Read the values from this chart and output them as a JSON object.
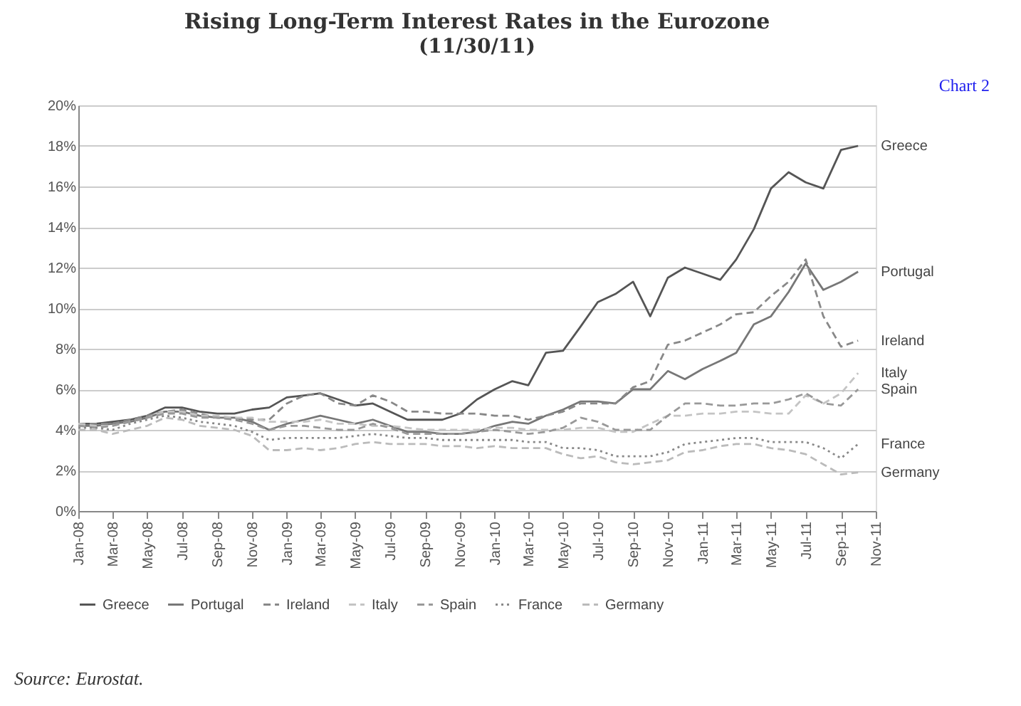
{
  "chart_data": {
    "type": "line",
    "title": "Rising Long-Term Interest Rates in the Eurozone",
    "subtitle": "(11/30/11)",
    "annotations": [
      "Chart 2",
      "Source: Eurostat."
    ],
    "x": [
      "2008-01",
      "2008-02",
      "2008-03",
      "2008-04",
      "2008-05",
      "2008-06",
      "2008-07",
      "2008-08",
      "2008-09",
      "2008-10",
      "2008-11",
      "2008-12",
      "2009-01",
      "2009-02",
      "2009-03",
      "2009-04",
      "2009-05",
      "2009-06",
      "2009-07",
      "2009-08",
      "2009-09",
      "2009-10",
      "2009-11",
      "2009-12",
      "2010-01",
      "2010-02",
      "2010-03",
      "2010-04",
      "2010-05",
      "2010-06",
      "2010-07",
      "2010-08",
      "2010-09",
      "2010-10",
      "2010-11",
      "2010-12",
      "2011-01",
      "2011-02",
      "2011-03",
      "2011-04",
      "2011-05",
      "2011-06",
      "2011-07",
      "2011-08",
      "2011-09",
      "2011-10"
    ],
    "series": [
      {
        "name": "Greece",
        "color": "#555555",
        "line_style": "solid",
        "values": [
          4.3,
          4.3,
          4.4,
          4.5,
          4.7,
          5.1,
          5.1,
          4.9,
          4.8,
          4.8,
          5.0,
          5.1,
          5.6,
          5.7,
          5.8,
          5.5,
          5.2,
          5.3,
          4.9,
          4.5,
          4.5,
          4.5,
          4.8,
          5.5,
          6.0,
          6.4,
          6.2,
          7.8,
          7.9,
          9.1,
          10.3,
          10.7,
          11.3,
          9.6,
          11.5,
          12.0,
          11.7,
          11.4,
          12.4,
          13.9,
          15.9,
          16.7,
          16.2,
          15.9,
          17.8,
          18.0
        ]
      },
      {
        "name": "Portugal",
        "color": "#777777",
        "line_style": "solid",
        "values": [
          4.2,
          4.2,
          4.3,
          4.4,
          4.6,
          4.9,
          4.9,
          4.7,
          4.6,
          4.6,
          4.4,
          4.0,
          4.3,
          4.5,
          4.7,
          4.5,
          4.3,
          4.5,
          4.2,
          3.9,
          3.9,
          3.8,
          3.8,
          3.9,
          4.2,
          4.4,
          4.3,
          4.7,
          5.0,
          5.4,
          5.4,
          5.3,
          6.0,
          6.0,
          6.9,
          6.5,
          7.0,
          7.4,
          7.8,
          9.2,
          9.6,
          10.8,
          12.2,
          10.9,
          11.3,
          11.8
        ]
      },
      {
        "name": "Ireland",
        "color": "#888888",
        "line_style": "dashed",
        "values": [
          4.3,
          4.3,
          4.3,
          4.5,
          4.7,
          4.9,
          5.0,
          4.8,
          4.6,
          4.6,
          4.5,
          4.5,
          5.3,
          5.7,
          5.8,
          5.3,
          5.2,
          5.7,
          5.4,
          4.9,
          4.9,
          4.8,
          4.8,
          4.8,
          4.7,
          4.7,
          4.5,
          4.7,
          4.9,
          5.3,
          5.3,
          5.3,
          6.1,
          6.4,
          8.2,
          8.4,
          8.8,
          9.2,
          9.7,
          9.8,
          10.6,
          11.3,
          12.4,
          9.6,
          8.1,
          8.4
        ]
      },
      {
        "name": "Italy",
        "color": "#c4c4c4",
        "line_style": "dashed",
        "values": [
          4.3,
          4.2,
          4.2,
          4.4,
          4.6,
          4.9,
          4.9,
          4.7,
          4.7,
          4.6,
          4.6,
          4.4,
          4.4,
          4.4,
          4.5,
          4.3,
          4.3,
          4.2,
          4.2,
          4.1,
          4.0,
          4.0,
          4.0,
          4.0,
          4.1,
          4.1,
          4.0,
          4.0,
          4.0,
          4.1,
          4.1,
          3.9,
          3.9,
          4.3,
          4.7,
          4.7,
          4.8,
          4.8,
          4.9,
          4.9,
          4.8,
          4.8,
          5.7,
          5.3,
          5.8,
          6.8
        ]
      },
      {
        "name": "Spain",
        "color": "#999999",
        "line_style": "dashed",
        "values": [
          4.2,
          4.1,
          4.2,
          4.4,
          4.6,
          4.8,
          4.8,
          4.6,
          4.6,
          4.5,
          4.3,
          4.0,
          4.2,
          4.2,
          4.1,
          4.0,
          4.0,
          4.3,
          4.1,
          3.8,
          3.8,
          3.8,
          3.8,
          3.9,
          4.0,
          3.9,
          3.8,
          3.9,
          4.1,
          4.6,
          4.4,
          4.0,
          4.0,
          4.0,
          4.7,
          5.3,
          5.3,
          5.2,
          5.2,
          5.3,
          5.3,
          5.5,
          5.8,
          5.3,
          5.2,
          6.0
        ]
      },
      {
        "name": "France",
        "color": "#888888",
        "line_style": "dotted",
        "values": [
          4.1,
          4.1,
          4.0,
          4.3,
          4.5,
          4.7,
          4.6,
          4.4,
          4.3,
          4.2,
          3.9,
          3.5,
          3.6,
          3.6,
          3.6,
          3.6,
          3.7,
          3.8,
          3.7,
          3.6,
          3.6,
          3.5,
          3.5,
          3.5,
          3.5,
          3.5,
          3.4,
          3.4,
          3.1,
          3.1,
          3.0,
          2.7,
          2.7,
          2.7,
          2.9,
          3.3,
          3.4,
          3.5,
          3.6,
          3.6,
          3.4,
          3.4,
          3.4,
          3.1,
          2.6,
          3.3
        ]
      },
      {
        "name": "Germany",
        "color": "#bbbbbb",
        "line_style": "dashed",
        "values": [
          4.0,
          4.0,
          3.8,
          4.0,
          4.2,
          4.6,
          4.5,
          4.2,
          4.1,
          4.0,
          3.7,
          3.0,
          3.0,
          3.1,
          3.0,
          3.1,
          3.3,
          3.4,
          3.3,
          3.3,
          3.3,
          3.2,
          3.2,
          3.1,
          3.2,
          3.1,
          3.1,
          3.1,
          2.8,
          2.6,
          2.7,
          2.4,
          2.3,
          2.4,
          2.5,
          2.9,
          3.0,
          3.2,
          3.3,
          3.3,
          3.1,
          3.0,
          2.8,
          2.3,
          1.8,
          1.9
        ]
      }
    ],
    "xlim": [
      "2008-01",
      "2011-11"
    ],
    "xticks": [
      {
        "value": "2008-01",
        "label": "Jan-08"
      },
      {
        "value": "2008-03",
        "label": "Mar-08"
      },
      {
        "value": "2008-05",
        "label": "May-08"
      },
      {
        "value": "2008-07",
        "label": "Jul-08"
      },
      {
        "value": "2008-09",
        "label": "Sep-08"
      },
      {
        "value": "2008-11",
        "label": "Nov-08"
      },
      {
        "value": "2009-01",
        "label": "Jan-09"
      },
      {
        "value": "2009-03",
        "label": "Mar-09"
      },
      {
        "value": "2009-05",
        "label": "May-09"
      },
      {
        "value": "2009-07",
        "label": "Jul-09"
      },
      {
        "value": "2009-09",
        "label": "Sep-09"
      },
      {
        "value": "2009-11",
        "label": "Nov-09"
      },
      {
        "value": "2010-01",
        "label": "Jan-10"
      },
      {
        "value": "2010-03",
        "label": "Mar-10"
      },
      {
        "value": "2010-05",
        "label": "May-10"
      },
      {
        "value": "2010-07",
        "label": "Jul-10"
      },
      {
        "value": "2010-09",
        "label": "Sep-10"
      },
      {
        "value": "2010-11",
        "label": "Nov-10"
      },
      {
        "value": "2011-01",
        "label": "Jan-11"
      },
      {
        "value": "2011-03",
        "label": "Mar-11"
      },
      {
        "value": "2011-05",
        "label": "May-11"
      },
      {
        "value": "2011-07",
        "label": "Jul-11"
      },
      {
        "value": "2011-09",
        "label": "Sep-11"
      },
      {
        "value": "2011-11",
        "label": "Nov-11"
      }
    ],
    "ylim": [
      0,
      20
    ],
    "yticks": [
      {
        "value": 0,
        "label": "0%"
      },
      {
        "value": 2,
        "label": "2%"
      },
      {
        "value": 4,
        "label": "4%"
      },
      {
        "value": 6,
        "label": "6%"
      },
      {
        "value": 8,
        "label": "8%"
      },
      {
        "value": 10,
        "label": "10%"
      },
      {
        "value": 12,
        "label": "12%"
      },
      {
        "value": 14,
        "label": "14%"
      },
      {
        "value": 16,
        "label": "16%"
      },
      {
        "value": 18,
        "label": "18%"
      },
      {
        "value": 20,
        "label": "20%"
      }
    ],
    "grid": "y",
    "legend": "bottom",
    "marker": "none"
  }
}
